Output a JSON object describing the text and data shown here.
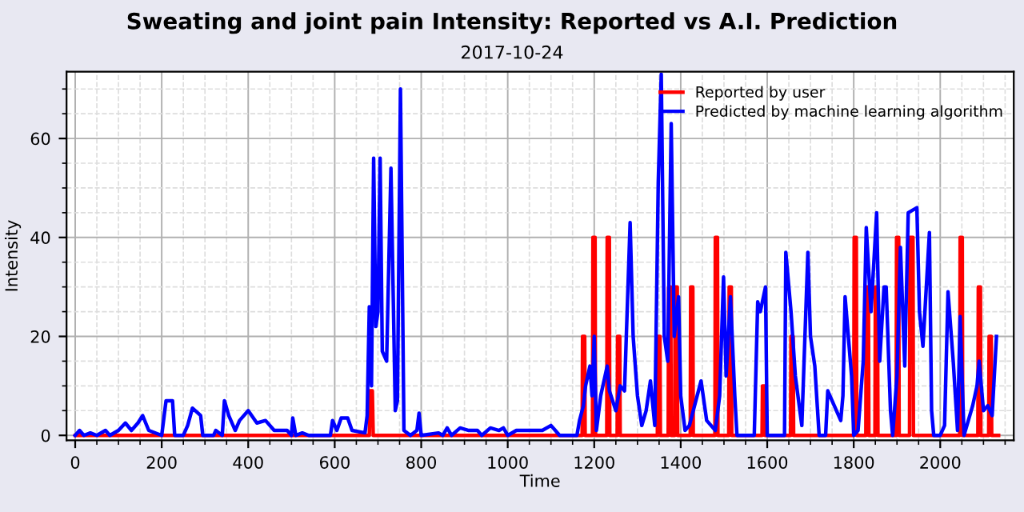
{
  "chart_data": {
    "type": "line",
    "title": "Sweating and joint pain Intensity: Reported vs A.I. Prediction",
    "subtitle": "2017-10-24",
    "xlabel": "Time",
    "ylabel": "Intensity",
    "xlim": [
      -20,
      2170
    ],
    "ylim": [
      -1,
      73.5
    ],
    "xticks": [
      0,
      200,
      400,
      600,
      800,
      1000,
      1200,
      1400,
      1600,
      1800,
      2000
    ],
    "yticks": [
      0,
      20,
      40,
      60
    ],
    "grid": true,
    "legend": "top right",
    "marker": "none",
    "line_style": "solid",
    "series": [
      {
        "name": "Reported by user",
        "color": "#ff0000",
        "x": [
          0,
          680,
          682,
          687,
          689,
          1172,
          1173,
          1178,
          1179,
          1196,
          1197,
          1202,
          1203,
          1229,
          1230,
          1235,
          1236,
          1253,
          1254,
          1259,
          1260,
          1346,
          1347,
          1352,
          1353,
          1371,
          1372,
          1377,
          1378,
          1386,
          1387,
          1392,
          1393,
          1422,
          1423,
          1428,
          1429,
          1479,
          1480,
          1485,
          1486,
          1511,
          1512,
          1517,
          1518,
          1588,
          1589,
          1594,
          1595,
          1654,
          1655,
          1660,
          1661,
          1800,
          1801,
          1806,
          1807,
          1828,
          1829,
          1834,
          1835,
          1849,
          1850,
          1855,
          1856,
          1898,
          1899,
          1904,
          1905,
          1929,
          1930,
          1937,
          1938,
          2045,
          2046,
          2051,
          2052,
          2087,
          2088,
          2093,
          2094,
          2112,
          2113,
          2118,
          2119,
          2135
        ],
        "values": [
          0,
          0,
          9,
          9,
          0,
          0,
          20,
          20,
          0,
          0,
          40,
          40,
          0,
          0,
          40,
          40,
          0,
          0,
          20,
          20,
          0,
          0,
          20,
          20,
          0,
          0,
          30,
          30,
          0,
          0,
          30,
          30,
          0,
          0,
          30,
          30,
          0,
          0,
          40,
          40,
          0,
          0,
          30,
          30,
          0,
          0,
          10,
          10,
          0,
          0,
          20,
          20,
          0,
          0,
          40,
          40,
          0,
          0,
          30,
          30,
          0,
          0,
          30,
          30,
          0,
          0,
          40,
          40,
          0,
          0,
          40,
          40,
          0,
          0,
          40,
          40,
          0,
          0,
          30,
          30,
          0,
          0,
          20,
          20,
          0,
          0
        ]
      },
      {
        "name": "Predicted by machine learning algorithm",
        "color": "#0000ff",
        "x": [
          0,
          10,
          20,
          35,
          50,
          70,
          80,
          100,
          116,
          130,
          145,
          156,
          170,
          200,
          210,
          225,
          230,
          250,
          260,
          271,
          290,
          295,
          320,
          325,
          340,
          345,
          355,
          370,
          380,
          400,
          420,
          440,
          460,
          490,
          500,
          503,
          510,
          525,
          540,
          590,
          595,
          605,
          615,
          630,
          640,
          670,
          675,
          680,
          685,
          690,
          695,
          700,
          705,
          710,
          720,
          730,
          740,
          745,
          752,
          760,
          775,
          790,
          795,
          800,
          840,
          850,
          860,
          870,
          890,
          910,
          930,
          940,
          960,
          980,
          990,
          1000,
          1020,
          1050,
          1080,
          1100,
          1110,
          1120,
          1160,
          1166,
          1175,
          1180,
          1190,
          1195,
          1200,
          1205,
          1215,
          1230,
          1235,
          1250,
          1260,
          1270,
          1283,
          1290,
          1300,
          1310,
          1320,
          1330,
          1340,
          1348,
          1355,
          1362,
          1370,
          1378,
          1385,
          1395,
          1400,
          1410,
          1420,
          1447,
          1460,
          1480,
          1490,
          1499,
          1505,
          1515,
          1525,
          1530,
          1570,
          1578,
          1584,
          1596,
          1600,
          1640,
          1643,
          1655,
          1665,
          1680,
          1694,
          1700,
          1710,
          1720,
          1735,
          1740,
          1755,
          1770,
          1775,
          1780,
          1795,
          1800,
          1810,
          1822,
          1829,
          1840,
          1853,
          1860,
          1870,
          1875,
          1885,
          1890,
          1900,
          1908,
          1918,
          1926,
          1946,
          1952,
          1960,
          1975,
          1980,
          1985,
          2000,
          2010,
          2018,
          2030,
          2040,
          2046,
          2055,
          2075,
          2085,
          2090,
          2100,
          2110,
          2120,
          2130
        ],
        "values": [
          0,
          1,
          0,
          0.5,
          0,
          1,
          0,
          1,
          2.5,
          1,
          2.5,
          4,
          1,
          0,
          7,
          7,
          0,
          0,
          2,
          5.5,
          4,
          0,
          0,
          1,
          0,
          7,
          4,
          1,
          3,
          5,
          2.5,
          3,
          1,
          1,
          0,
          3.5,
          0,
          0.5,
          0,
          0,
          3,
          1,
          3.5,
          3.5,
          1,
          0.5,
          4,
          26,
          10,
          56,
          22,
          25,
          56,
          17,
          15,
          54,
          5,
          7,
          70,
          1,
          0,
          1,
          4.5,
          0,
          0.5,
          0,
          1.5,
          0,
          1.5,
          1,
          1,
          0,
          1.5,
          1,
          1.5,
          0,
          1,
          1,
          1,
          2,
          1,
          0,
          0,
          3,
          6,
          10,
          14,
          8,
          20,
          1,
          8,
          14,
          9,
          5,
          10,
          9,
          43,
          20,
          8,
          2,
          5,
          11,
          2,
          51,
          73,
          20,
          15,
          63,
          20,
          28,
          8,
          1,
          2,
          11,
          3,
          1,
          8,
          32,
          12,
          28,
          8,
          0,
          0,
          27,
          25,
          30,
          0,
          0,
          37,
          25,
          12,
          2,
          37,
          20,
          14,
          0,
          0,
          9,
          6,
          3,
          8,
          28,
          12,
          0,
          1,
          15,
          42,
          25,
          45,
          15,
          30,
          30,
          5,
          0,
          12,
          38,
          14,
          45,
          46,
          25,
          18,
          41,
          5,
          0,
          0,
          2,
          29,
          15,
          1,
          24,
          0,
          6,
          10,
          15,
          5,
          6,
          4,
          20
        ]
      }
    ]
  }
}
